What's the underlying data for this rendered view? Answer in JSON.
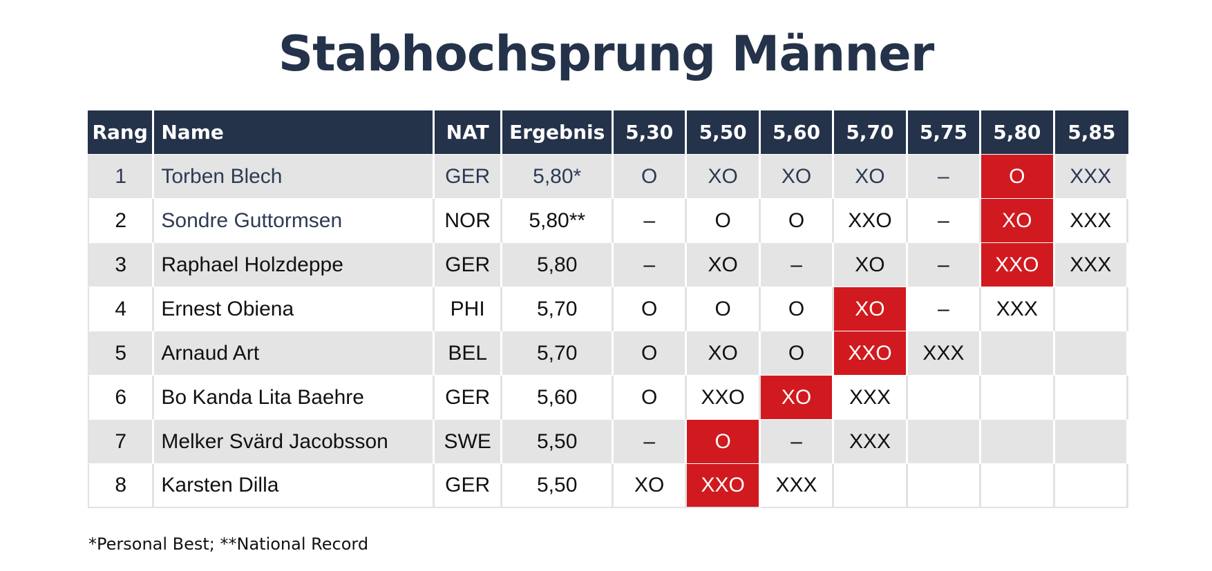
{
  "title": "Stabhochsprung Männer",
  "colors": {
    "header_bg": "#24324a",
    "row_alt_bg": "#e4e4e4",
    "highlight": "#d01a1f",
    "title_color": "#24324a"
  },
  "table": {
    "headers": [
      "Rang",
      "Name",
      "NAT",
      "Ergebnis",
      "5,30",
      "5,50",
      "5,60",
      "5,70",
      "5,75",
      "5,80",
      "5,85"
    ],
    "rows": [
      {
        "rank": "1",
        "name": "Torben Blech",
        "nat": "GER",
        "result": "5,80*",
        "attempts": [
          "O",
          "XO",
          "XO",
          "XO",
          "–",
          "O",
          "XXX"
        ],
        "cleared_col": 5
      },
      {
        "rank": "2",
        "name": "Sondre Guttormsen",
        "nat": "NOR",
        "result": "5,80**",
        "attempts": [
          "–",
          "O",
          "O",
          "XXO",
          "–",
          "XO",
          "XXX"
        ],
        "cleared_col": 5
      },
      {
        "rank": "3",
        "name": "Raphael Holzdeppe",
        "nat": "GER",
        "result": "5,80",
        "attempts": [
          "–",
          "XO",
          "–",
          "XO",
          "–",
          "XXO",
          "XXX"
        ],
        "cleared_col": 5
      },
      {
        "rank": "4",
        "name": "Ernest Obiena",
        "nat": "PHI",
        "result": "5,70",
        "attempts": [
          "O",
          "O",
          "O",
          "XO",
          "–",
          "XXX",
          ""
        ],
        "cleared_col": 3
      },
      {
        "rank": "5",
        "name": "Arnaud Art",
        "nat": "BEL",
        "result": "5,70",
        "attempts": [
          "O",
          "XO",
          "O",
          "XXO",
          "XXX",
          "",
          ""
        ],
        "cleared_col": 3
      },
      {
        "rank": "6",
        "name": "Bo Kanda Lita Baehre",
        "nat": "GER",
        "result": "5,60",
        "attempts": [
          "O",
          "XXO",
          "XO",
          "XXX",
          "",
          "",
          ""
        ],
        "cleared_col": 2
      },
      {
        "rank": "7",
        "name": "Melker Svärd Jacobsson",
        "nat": "SWE",
        "result": "5,50",
        "attempts": [
          "–",
          "O",
          "–",
          "XXX",
          "",
          "",
          ""
        ],
        "cleared_col": 1
      },
      {
        "rank": "8",
        "name": "Karsten Dilla",
        "nat": "GER",
        "result": "5,50",
        "attempts": [
          "XO",
          "XXO",
          "XXX",
          "",
          "",
          "",
          ""
        ],
        "cleared_col": 1
      }
    ]
  },
  "footnote": "*Personal Best; **National Record"
}
